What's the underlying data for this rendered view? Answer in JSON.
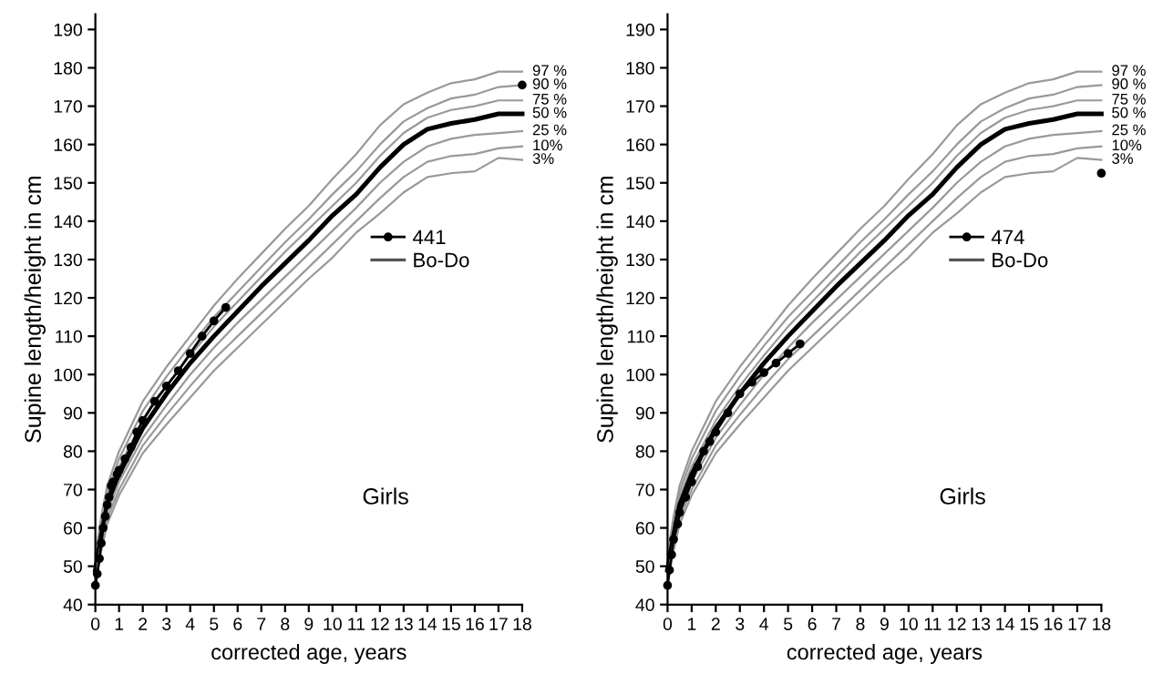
{
  "chart_data": [
    {
      "type": "line",
      "xlabel": "corrected age, years",
      "ylabel": "Supine length/height in cm",
      "xlim": [
        0,
        18
      ],
      "ylim": [
        40,
        194
      ],
      "xticks": [
        0,
        1,
        2,
        3,
        4,
        5,
        6,
        7,
        8,
        9,
        10,
        11,
        12,
        13,
        14,
        15,
        16,
        17,
        18
      ],
      "yticks": [
        40,
        50,
        60,
        70,
        80,
        90,
        100,
        110,
        120,
        130,
        140,
        150,
        160,
        170,
        180,
        190
      ],
      "grid": false,
      "legend": "right",
      "annotations": [
        "Bo-Do",
        "Girls"
      ],
      "series": [
        {
          "name": "97 %",
          "color": "#999999",
          "x": [
            0,
            0.25,
            0.5,
            1,
            2,
            3,
            4,
            5,
            6,
            7,
            8,
            9,
            10,
            11,
            12,
            13,
            14,
            15,
            16,
            17,
            18
          ],
          "values": [
            53,
            63,
            71,
            80,
            93,
            102,
            110,
            118,
            125,
            131.5,
            138,
            144,
            151,
            157.5,
            165,
            170.5,
            173.5,
            176,
            177,
            179,
            179
          ]
        },
        {
          "name": "90 %",
          "color": "#999999",
          "x": [
            0,
            0.25,
            0.5,
            1,
            2,
            3,
            4,
            5,
            6,
            7,
            8,
            9,
            10,
            11,
            12,
            13,
            14,
            15,
            16,
            17,
            18
          ],
          "values": [
            52,
            61.5,
            69.5,
            78,
            90.5,
            99.5,
            107.5,
            115,
            121.5,
            128,
            134.5,
            140.5,
            147,
            153,
            160,
            166,
            169.5,
            172,
            173,
            175,
            175.5
          ]
        },
        {
          "name": "75 %",
          "color": "#999999",
          "x": [
            0,
            0.25,
            0.5,
            1,
            2,
            3,
            4,
            5,
            6,
            7,
            8,
            9,
            10,
            11,
            12,
            13,
            14,
            15,
            16,
            17,
            18
          ],
          "values": [
            50.5,
            60,
            68,
            76,
            88,
            97,
            105,
            112.5,
            119,
            125.5,
            132,
            138,
            144,
            150,
            157,
            163,
            167,
            169,
            170,
            171.5,
            171.5
          ]
        },
        {
          "name": "50 %",
          "color": "#000000",
          "x": [
            0,
            0.25,
            0.5,
            1,
            2,
            3,
            4,
            5,
            6,
            7,
            8,
            9,
            10,
            11,
            12,
            13,
            14,
            15,
            16,
            17,
            18
          ],
          "values": [
            49,
            58,
            66,
            74,
            86,
            95,
            103,
            110,
            116.5,
            123,
            129,
            135,
            141.5,
            147,
            154,
            160,
            164,
            165.5,
            166.5,
            168,
            168
          ]
        },
        {
          "name": "25 %",
          "color": "#999999",
          "x": [
            0,
            0.25,
            0.5,
            1,
            2,
            3,
            4,
            5,
            6,
            7,
            8,
            9,
            10,
            11,
            12,
            13,
            14,
            15,
            16,
            17,
            18
          ],
          "values": [
            47.5,
            56.5,
            64,
            72,
            83.5,
            92,
            100,
            107,
            113.5,
            119.5,
            125.5,
            131.5,
            137.5,
            143.5,
            150,
            155.5,
            159.5,
            161.5,
            162.5,
            163,
            163.5
          ]
        },
        {
          "name": "10%",
          "color": "#999999",
          "x": [
            0,
            0.25,
            0.5,
            1,
            2,
            3,
            4,
            5,
            6,
            7,
            8,
            9,
            10,
            11,
            12,
            13,
            14,
            15,
            16,
            17,
            18
          ],
          "values": [
            46.5,
            55,
            62.5,
            70,
            81.5,
            89.5,
            97,
            104,
            110,
            116,
            122,
            128,
            134,
            140,
            146,
            151.5,
            155.5,
            157,
            157.5,
            159,
            159.5
          ]
        },
        {
          "name": "3%",
          "color": "#999999",
          "x": [
            0,
            0.25,
            0.5,
            1,
            2,
            3,
            4,
            5,
            6,
            7,
            8,
            9,
            10,
            11,
            12,
            13,
            14,
            15,
            16,
            17,
            18
          ],
          "values": [
            45.5,
            54,
            61,
            68.5,
            79.5,
            87,
            94,
            101,
            107,
            113,
            119,
            125,
            130.5,
            137,
            142,
            147.5,
            151.5,
            152.5,
            153,
            156.5,
            156
          ]
        },
        {
          "name": "441",
          "color": "#000000",
          "marker": "circle",
          "x": [
            0,
            0.08,
            0.17,
            0.25,
            0.33,
            0.42,
            0.5,
            0.58,
            0.67,
            0.75,
            0.92,
            1,
            1.25,
            1.5,
            1.75,
            2,
            2.5,
            3,
            3.5,
            4,
            4.5,
            5,
            5.5,
            12,
            18
          ],
          "values": [
            45,
            48,
            52,
            56,
            60,
            63,
            66,
            68,
            71,
            72,
            74,
            75,
            78,
            81,
            85,
            88,
            93,
            97,
            101,
            105.5,
            110,
            114,
            117.5,
            null,
            175.5
          ]
        }
      ]
    },
    {
      "type": "line",
      "xlabel": "corrected age, years",
      "ylabel": "Supine length/height in cm",
      "xlim": [
        0,
        18
      ],
      "ylim": [
        40,
        194
      ],
      "xticks": [
        0,
        1,
        2,
        3,
        4,
        5,
        6,
        7,
        8,
        9,
        10,
        11,
        12,
        13,
        14,
        15,
        16,
        17,
        18
      ],
      "yticks": [
        40,
        50,
        60,
        70,
        80,
        90,
        100,
        110,
        120,
        130,
        140,
        150,
        160,
        170,
        180,
        190
      ],
      "grid": false,
      "legend": "right",
      "annotations": [
        "Bo-Do",
        "Girls"
      ],
      "series": [
        {
          "name": "97 %",
          "color": "#999999",
          "x": [
            0,
            0.25,
            0.5,
            1,
            2,
            3,
            4,
            5,
            6,
            7,
            8,
            9,
            10,
            11,
            12,
            13,
            14,
            15,
            16,
            17,
            18
          ],
          "values": [
            53,
            63,
            71,
            80,
            93,
            102,
            110,
            118,
            125,
            131.5,
            138,
            144,
            151,
            157.5,
            165,
            170.5,
            173.5,
            176,
            177,
            179,
            179
          ]
        },
        {
          "name": "90 %",
          "color": "#999999",
          "x": [
            0,
            0.25,
            0.5,
            1,
            2,
            3,
            4,
            5,
            6,
            7,
            8,
            9,
            10,
            11,
            12,
            13,
            14,
            15,
            16,
            17,
            18
          ],
          "values": [
            52,
            61.5,
            69.5,
            78,
            90.5,
            99.5,
            107.5,
            115,
            121.5,
            128,
            134.5,
            140.5,
            147,
            153,
            160,
            166,
            169.5,
            172,
            173,
            175,
            175.5
          ]
        },
        {
          "name": "75 %",
          "color": "#999999",
          "x": [
            0,
            0.25,
            0.5,
            1,
            2,
            3,
            4,
            5,
            6,
            7,
            8,
            9,
            10,
            11,
            12,
            13,
            14,
            15,
            16,
            17,
            18
          ],
          "values": [
            50.5,
            60,
            68,
            76,
            88,
            97,
            105,
            112.5,
            119,
            125.5,
            132,
            138,
            144,
            150,
            157,
            163,
            167,
            169,
            170,
            171.5,
            171.5
          ]
        },
        {
          "name": "50 %",
          "color": "#000000",
          "x": [
            0,
            0.25,
            0.5,
            1,
            2,
            3,
            4,
            5,
            6,
            7,
            8,
            9,
            10,
            11,
            12,
            13,
            14,
            15,
            16,
            17,
            18
          ],
          "values": [
            49,
            58,
            66,
            74,
            86,
            95,
            103,
            110,
            116.5,
            123,
            129,
            135,
            141.5,
            147,
            154,
            160,
            164,
            165.5,
            166.5,
            168,
            168
          ]
        },
        {
          "name": "25 %",
          "color": "#999999",
          "x": [
            0,
            0.25,
            0.5,
            1,
            2,
            3,
            4,
            5,
            6,
            7,
            8,
            9,
            10,
            11,
            12,
            13,
            14,
            15,
            16,
            17,
            18
          ],
          "values": [
            47.5,
            56.5,
            64,
            72,
            83.5,
            92,
            100,
            107,
            113.5,
            119.5,
            125.5,
            131.5,
            137.5,
            143.5,
            150,
            155.5,
            159.5,
            161.5,
            162.5,
            163,
            163.5
          ]
        },
        {
          "name": "10%",
          "color": "#999999",
          "x": [
            0,
            0.25,
            0.5,
            1,
            2,
            3,
            4,
            5,
            6,
            7,
            8,
            9,
            10,
            11,
            12,
            13,
            14,
            15,
            16,
            17,
            18
          ],
          "values": [
            46.5,
            55,
            62.5,
            70,
            81.5,
            89.5,
            97,
            104,
            110,
            116,
            122,
            128,
            134,
            140,
            146,
            151.5,
            155.5,
            157,
            157.5,
            159,
            159.5
          ]
        },
        {
          "name": "3%",
          "color": "#999999",
          "x": [
            0,
            0.25,
            0.5,
            1,
            2,
            3,
            4,
            5,
            6,
            7,
            8,
            9,
            10,
            11,
            12,
            13,
            14,
            15,
            16,
            17,
            18
          ],
          "values": [
            45.5,
            54,
            61,
            68.5,
            79.5,
            87,
            94,
            101,
            107,
            113,
            119,
            125,
            130.5,
            137,
            142,
            147.5,
            151.5,
            152.5,
            153,
            156.5,
            156
          ]
        },
        {
          "name": "474",
          "color": "#000000",
          "marker": "circle",
          "x": [
            0,
            0.08,
            0.17,
            0.25,
            0.42,
            0.5,
            0.75,
            1,
            1.25,
            1.5,
            1.75,
            2,
            2.5,
            3,
            3.5,
            4,
            4.5,
            5,
            5.5,
            12,
            18
          ],
          "values": [
            45,
            49,
            53,
            57,
            61,
            64,
            68,
            72,
            76,
            80,
            82.5,
            85,
            90,
            95,
            98,
            100.5,
            103,
            105.5,
            108,
            null,
            152.5
          ]
        }
      ]
    }
  ]
}
